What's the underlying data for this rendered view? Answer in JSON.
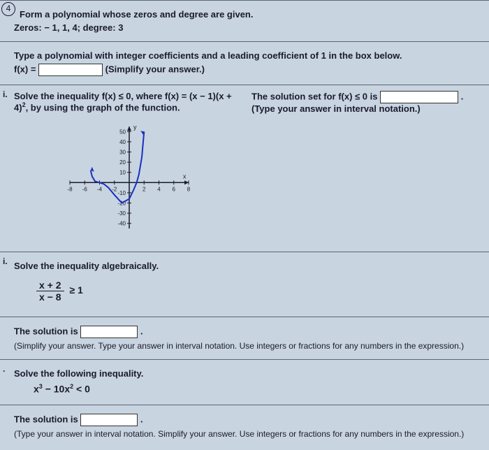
{
  "sections": {
    "s1": {
      "number": "4",
      "title": "Form a polynomial whose zeros and degree are given.",
      "zeros_label": "Zeros: − 1, 1, 4;   degree: 3",
      "instruction": "Type a polynomial with integer coefficients and a leading coefficient of 1 in the box below.",
      "fx_prefix": "f(x) = ",
      "simplify": "(Simplify your answer.)"
    },
    "s2": {
      "label": "i.",
      "prompt_a": "Solve the inequality f(x) ≤ 0, where f(x) = (x − 1)(x + 4)",
      "exponent": "2",
      "prompt_b": ", by using the graph of the function.",
      "right_a": "The solution set for f(x) ≤ 0 is ",
      "right_b": "(Type your answer in interval notation.)",
      "chart": {
        "type": "line",
        "xlim": [
          -8,
          8
        ],
        "ylim": [
          -45,
          55
        ],
        "xticks": [
          -8,
          -6,
          -4,
          -2,
          2,
          4,
          6,
          8
        ],
        "yticks": [
          -40,
          -30,
          -20,
          -10,
          10,
          20,
          30,
          40,
          50
        ],
        "axis_color": "#1a1a2e",
        "series_color": "#1a30c0",
        "background": "#c8d4e0",
        "points": [
          [
            -5.2,
            12
          ],
          [
            -5,
            6
          ],
          [
            -4.6,
            1.2
          ],
          [
            -4,
            0
          ],
          [
            -3.4,
            -1.5
          ],
          [
            -2.8,
            -5
          ],
          [
            -2,
            -12
          ],
          [
            -1,
            -20
          ],
          [
            0,
            -16
          ],
          [
            0.6,
            -7
          ],
          [
            1,
            0
          ],
          [
            1.3,
            8
          ],
          [
            1.7,
            25
          ],
          [
            2.0,
            50
          ]
        ]
      }
    },
    "s3": {
      "label": "i.",
      "title": "Solve the inequality algebraically.",
      "frac_num": "x + 2",
      "frac_den": "x − 8",
      "ge": "≥ 1",
      "sol_prefix": "The solution is ",
      "hint": "(Simplify your answer. Type your answer in interval notation. Use integers or fractions for any numbers in the expression.)"
    },
    "s4": {
      "label": ".",
      "title": "Solve the following inequality.",
      "expr_a": "x",
      "exp1": "3",
      "expr_b": " − 10x",
      "exp2": "2",
      "expr_c": " < 0",
      "sol_prefix": "The solution is ",
      "hint": "(Type your answer in interval notation. Simplify your answer. Use integers or fractions for any numbers in the expression.)"
    }
  }
}
